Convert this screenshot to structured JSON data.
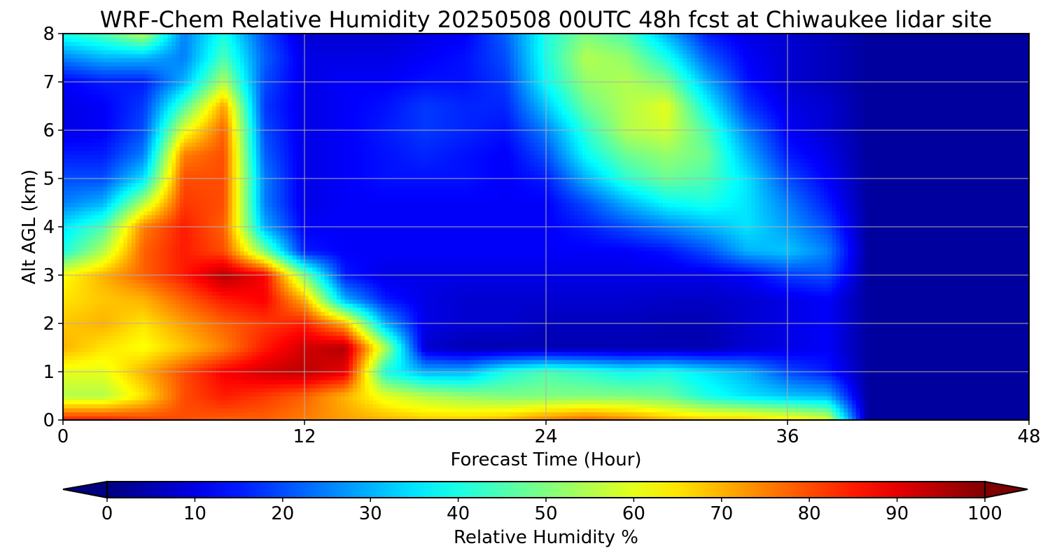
{
  "chart_data": {
    "type": "heatmap",
    "title": "WRF-Chem Relative Humidity 20250508 00UTC 48h fcst at Chiwaukee lidar site",
    "xlabel": "Forecast Time (Hour)",
    "ylabel": "Alt AGL (km)",
    "xlim": [
      0,
      48
    ],
    "ylim": [
      0,
      8
    ],
    "xticks": [
      "0",
      "12",
      "24",
      "36",
      "48"
    ],
    "yticks": [
      "0",
      "1",
      "2",
      "3",
      "4",
      "5",
      "6",
      "7",
      "8"
    ],
    "grid": true,
    "colormap": "jet",
    "colorbar": {
      "label": "Relative Humidity %",
      "orientation": "horizontal",
      "extend": "both",
      "range": [
        0,
        100
      ],
      "ticks": [
        "0",
        "10",
        "20",
        "30",
        "40",
        "50",
        "60",
        "70",
        "80",
        "90",
        "100"
      ]
    },
    "x": [
      0,
      2,
      4,
      6,
      8,
      10,
      12,
      14,
      16,
      18,
      20,
      22,
      24,
      26,
      28,
      30,
      32,
      34,
      36,
      38,
      40,
      42,
      44,
      46,
      48
    ],
    "y": [
      0,
      0.5,
      1,
      1.5,
      2,
      2.5,
      3,
      3.5,
      4,
      4.5,
      5,
      5.5,
      6,
      6.5,
      7,
      7.5,
      8
    ],
    "z": [
      [
        85,
        85,
        82,
        80,
        78,
        78,
        75,
        72,
        70,
        68,
        68,
        70,
        75,
        78,
        75,
        70,
        68,
        68,
        65,
        60,
        3,
        3,
        3,
        3,
        3
      ],
      [
        55,
        55,
        65,
        80,
        85,
        82,
        78,
        70,
        60,
        55,
        52,
        50,
        50,
        50,
        50,
        48,
        40,
        35,
        32,
        30,
        3,
        3,
        3,
        3,
        3
      ],
      [
        60,
        60,
        70,
        80,
        88,
        92,
        94,
        90,
        40,
        30,
        30,
        40,
        45,
        42,
        38,
        40,
        35,
        30,
        20,
        15,
        3,
        3,
        3,
        3,
        3
      ],
      [
        70,
        65,
        62,
        68,
        75,
        85,
        92,
        95,
        55,
        8,
        5,
        5,
        5,
        5,
        5,
        5,
        5,
        8,
        10,
        12,
        3,
        3,
        3,
        3,
        3
      ],
      [
        68,
        70,
        65,
        72,
        78,
        82,
        85,
        70,
        30,
        10,
        8,
        8,
        6,
        6,
        6,
        5,
        5,
        8,
        10,
        12,
        3,
        3,
        3,
        3,
        3
      ],
      [
        65,
        68,
        70,
        78,
        85,
        88,
        70,
        30,
        15,
        10,
        8,
        8,
        8,
        8,
        8,
        7,
        7,
        8,
        10,
        12,
        3,
        3,
        3,
        3,
        3
      ],
      [
        62,
        70,
        78,
        85,
        95,
        88,
        50,
        15,
        10,
        10,
        10,
        10,
        10,
        10,
        10,
        10,
        10,
        12,
        18,
        20,
        3,
        3,
        3,
        3,
        3
      ],
      [
        40,
        55,
        78,
        85,
        80,
        50,
        15,
        12,
        12,
        12,
        12,
        12,
        12,
        12,
        12,
        14,
        20,
        30,
        32,
        25,
        3,
        3,
        3,
        3,
        3
      ],
      [
        35,
        45,
        75,
        85,
        78,
        30,
        12,
        12,
        12,
        12,
        12,
        12,
        12,
        15,
        20,
        25,
        30,
        35,
        28,
        20,
        3,
        3,
        3,
        3,
        3
      ],
      [
        25,
        30,
        55,
        82,
        80,
        25,
        10,
        12,
        12,
        12,
        12,
        12,
        12,
        20,
        30,
        38,
        40,
        35,
        25,
        15,
        3,
        3,
        3,
        3,
        3
      ],
      [
        20,
        20,
        35,
        80,
        80,
        25,
        10,
        12,
        14,
        14,
        14,
        12,
        15,
        30,
        42,
        48,
        45,
        35,
        20,
        12,
        3,
        3,
        3,
        3,
        3
      ],
      [
        15,
        15,
        25,
        75,
        80,
        22,
        10,
        12,
        14,
        16,
        14,
        12,
        20,
        38,
        48,
        52,
        48,
        30,
        15,
        10,
        3,
        3,
        3,
        3,
        3
      ],
      [
        10,
        12,
        20,
        60,
        78,
        20,
        10,
        12,
        15,
        18,
        16,
        14,
        25,
        42,
        55,
        58,
        45,
        25,
        12,
        8,
        3,
        3,
        3,
        3,
        3
      ],
      [
        10,
        12,
        18,
        45,
        72,
        18,
        10,
        12,
        14,
        18,
        16,
        16,
        32,
        48,
        55,
        60,
        38,
        18,
        10,
        8,
        3,
        3,
        3,
        3,
        3
      ],
      [
        12,
        15,
        15,
        30,
        55,
        20,
        10,
        12,
        12,
        14,
        14,
        18,
        38,
        52,
        55,
        50,
        30,
        14,
        8,
        6,
        3,
        3,
        3,
        3,
        3
      ],
      [
        25,
        30,
        30,
        25,
        45,
        22,
        10,
        10,
        10,
        12,
        14,
        20,
        40,
        55,
        52,
        40,
        22,
        12,
        8,
        6,
        3,
        3,
        3,
        3,
        3
      ],
      [
        40,
        45,
        55,
        25,
        40,
        20,
        8,
        8,
        8,
        10,
        12,
        22,
        40,
        50,
        45,
        30,
        15,
        10,
        8,
        6,
        3,
        3,
        3,
        3,
        3
      ]
    ]
  }
}
